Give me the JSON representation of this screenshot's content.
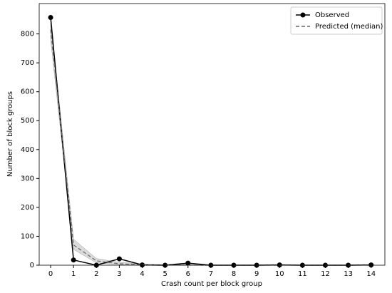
{
  "chart_data": {
    "type": "line",
    "xlabel": "Crash count per block group",
    "ylabel": "Number of block groups",
    "x": [
      0,
      1,
      2,
      3,
      4,
      5,
      6,
      7,
      8,
      9,
      10,
      11,
      12,
      13,
      14
    ],
    "series": [
      {
        "name": "Observed",
        "color": "#000000",
        "style": "solid",
        "marker": true,
        "values": [
          857,
          18,
          0,
          22,
          1,
          0,
          7,
          0,
          0,
          0,
          1,
          0,
          0,
          0,
          1
        ]
      },
      {
        "name": "Predicted (median)",
        "color": "#666666",
        "style": "dashed",
        "marker": false,
        "values": [
          815,
          70,
          15,
          5,
          1.5,
          0.5,
          0.2,
          0,
          0,
          0,
          0,
          0,
          0,
          0,
          0
        ],
        "band_color": "#cccccc",
        "band_lower": [
          780,
          55,
          8,
          2,
          0,
          0,
          0,
          0,
          0,
          0,
          0,
          0,
          0,
          0,
          0
        ],
        "band_upper": [
          850,
          90,
          23,
          10,
          4,
          2,
          1,
          0.5,
          0,
          0,
          0,
          0,
          0,
          0,
          0
        ]
      }
    ],
    "xlim": [
      -0.5,
      14.6
    ],
    "ylim": [
      0,
      905
    ],
    "xticks": [
      0,
      1,
      2,
      3,
      4,
      5,
      6,
      7,
      8,
      9,
      10,
      11,
      12,
      13,
      14
    ],
    "yticks": [
      0,
      100,
      200,
      300,
      400,
      500,
      600,
      700,
      800
    ],
    "grid": false,
    "legend": "upper right"
  }
}
